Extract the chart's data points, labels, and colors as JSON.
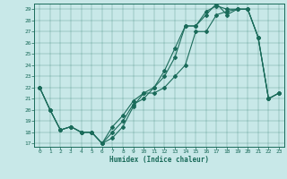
{
  "title": "",
  "xlabel": "Humidex (Indice chaleur)",
  "bg_color": "#c8e8e8",
  "line_color": "#1a6b5a",
  "xlim": [
    -0.5,
    23.5
  ],
  "ylim": [
    16.7,
    29.5
  ],
  "xticks": [
    0,
    1,
    2,
    3,
    4,
    5,
    6,
    7,
    8,
    9,
    10,
    11,
    12,
    13,
    14,
    15,
    16,
    17,
    18,
    19,
    20,
    21,
    22,
    23
  ],
  "yticks": [
    17,
    18,
    19,
    20,
    21,
    22,
    23,
    24,
    25,
    26,
    27,
    28,
    29
  ],
  "series": [
    {
      "x": [
        0,
        1,
        2,
        3,
        4,
        5,
        6,
        7,
        8,
        9,
        10,
        11,
        12,
        13,
        14,
        15,
        16,
        17,
        18,
        19,
        20,
        21,
        22,
        23
      ],
      "y": [
        22,
        20,
        18.2,
        18.5,
        18,
        18,
        17,
        17.5,
        18.5,
        20.3,
        21.5,
        21.5,
        22,
        23,
        24,
        27,
        27,
        28.5,
        28.8,
        29,
        29,
        26.5,
        21,
        21.5
      ]
    },
    {
      "x": [
        0,
        1,
        2,
        3,
        4,
        5,
        6,
        7,
        8,
        9,
        10,
        11,
        12,
        13,
        14,
        15,
        16,
        17,
        18,
        19,
        20,
        21,
        22,
        23
      ],
      "y": [
        22,
        20,
        18.2,
        18.5,
        18,
        18,
        17,
        18,
        19,
        20.5,
        21,
        22,
        23,
        24.7,
        27.5,
        27.5,
        28.5,
        29.5,
        28.5,
        29,
        29,
        26.5,
        21,
        21.5
      ]
    },
    {
      "x": [
        0,
        1,
        2,
        3,
        4,
        5,
        6,
        7,
        8,
        9,
        10,
        11,
        12,
        13,
        14,
        15,
        16,
        17,
        18,
        19,
        20,
        21,
        22,
        23
      ],
      "y": [
        22,
        20,
        18.2,
        18.5,
        18,
        18,
        17,
        18.5,
        19.5,
        20.8,
        21.5,
        22,
        23.5,
        25.5,
        27.5,
        27.5,
        28.8,
        29.3,
        29,
        29,
        29,
        26.5,
        21,
        21.5
      ]
    }
  ]
}
